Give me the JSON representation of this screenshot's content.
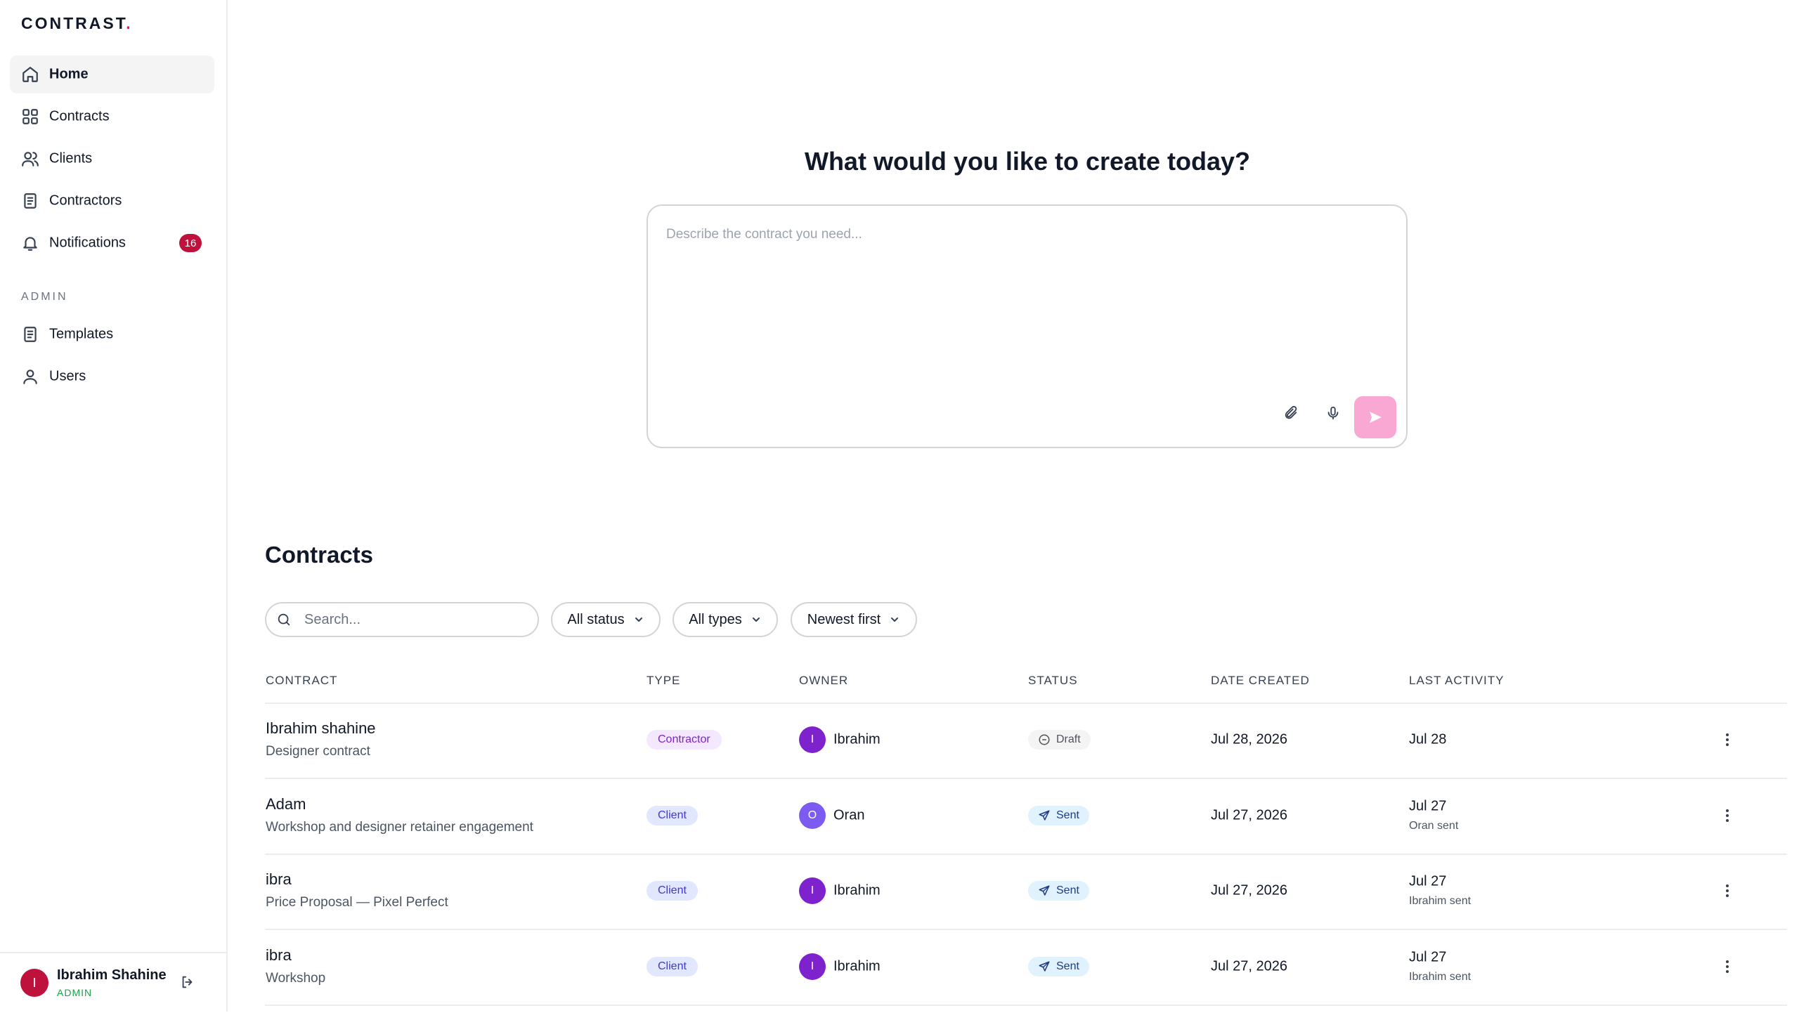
{
  "sidebar": {
    "logo": {
      "text": "CONTRAST",
      "dot": "."
    },
    "nav": [
      {
        "label": "Home"
      },
      {
        "label": "Contracts"
      },
      {
        "label": "Clients"
      },
      {
        "label": "Contractors"
      },
      {
        "label": "Notifications",
        "badge": "16"
      }
    ],
    "admin_label": "ADMIN",
    "admin_nav": [
      {
        "label": "Templates"
      },
      {
        "label": "Users"
      }
    ],
    "user": {
      "initial": "I",
      "name": "Ibrahim Shahine",
      "role": "ADMIN"
    }
  },
  "main": {
    "heading": "What would you like to create today?",
    "prompt_placeholder": "Describe the contract you need...",
    "contracts_title": "Contracts",
    "search_placeholder": "Search...",
    "filters": [
      "All status",
      "All types",
      "Newest first"
    ],
    "table": {
      "columns": [
        "CONTRACT",
        "TYPE",
        "OWNER",
        "STATUS",
        "DATE CREATED",
        "LAST ACTIVITY"
      ],
      "rows": [
        {
          "title": "Ibrahim shahine",
          "subtitle": "Designer contract",
          "type": "Contractor",
          "owner_initial": "I",
          "owner": "Ibrahim",
          "status": "Draft",
          "date_created": "Jul 28, 2026",
          "last_activity": {
            "date": "Jul 28"
          }
        },
        {
          "title": "Adam",
          "subtitle": "Workshop and designer retainer engagement",
          "type": "Client",
          "owner_initial": "O",
          "owner": "Oran",
          "status": "Sent",
          "date_created": "Jul 27, 2026",
          "last_activity": {
            "date": "Jul 27",
            "note": "Oran sent"
          }
        },
        {
          "title": "ibra",
          "subtitle": "Price Proposal — Pixel Perfect",
          "type": "Client",
          "owner_initial": "I",
          "owner": "Ibrahim",
          "status": "Sent",
          "date_created": "Jul 27, 2026",
          "last_activity": {
            "date": "Jul 27",
            "note": "Ibrahim sent"
          }
        },
        {
          "title": "ibra",
          "subtitle": "Workshop",
          "type": "Client",
          "owner_initial": "I",
          "owner": "Ibrahim",
          "status": "Sent",
          "date_created": "Jul 27, 2026",
          "last_activity": {
            "date": "Jul 27",
            "note": "Ibrahim sent"
          }
        }
      ]
    }
  }
}
